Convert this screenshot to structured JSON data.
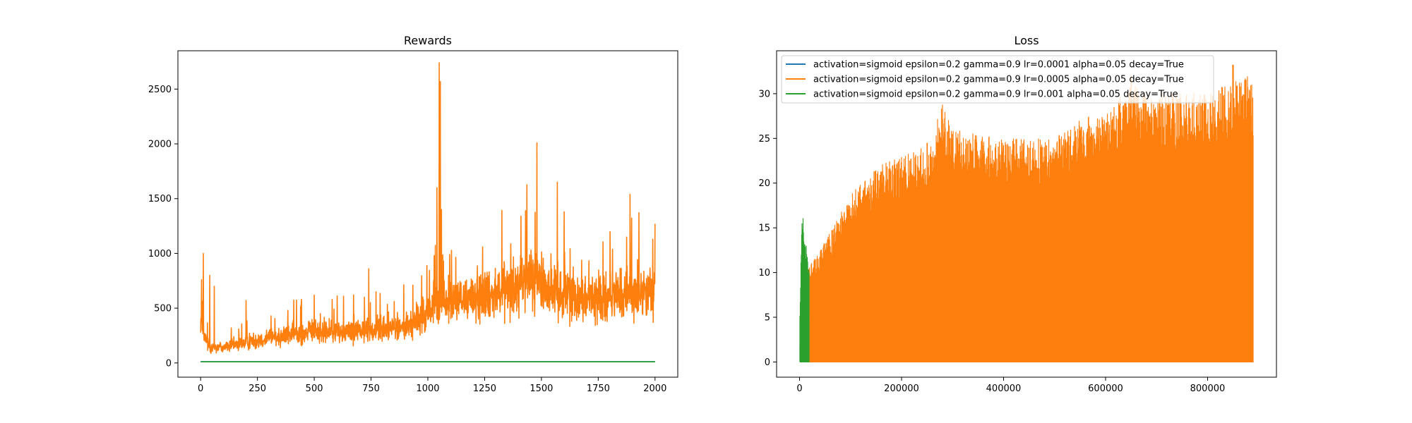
{
  "colors": {
    "blue": "#1f77b4",
    "orange": "#ff7f0e",
    "green": "#2ca02c",
    "axes": "#000000",
    "legend_border": "#cccccc"
  },
  "chart_data": [
    {
      "type": "line",
      "title": "Rewards",
      "xlabel": "",
      "ylabel": "",
      "xlim": [
        -100,
        2100
      ],
      "ylim": [
        -130,
        2850
      ],
      "grid": false,
      "xticks": [
        0,
        250,
        500,
        750,
        1000,
        1250,
        1500,
        1750,
        2000
      ],
      "yticks": [
        0,
        500,
        1000,
        1500,
        2000,
        2500
      ],
      "x_range": [
        0,
        2000
      ],
      "series": [
        {
          "color": "blue",
          "role": "flat",
          "level": 12
        },
        {
          "color": "orange",
          "role": "noisy",
          "trend_points": [
            [
              0,
              420
            ],
            [
              10,
              260
            ],
            [
              40,
              150
            ],
            [
              100,
              145
            ],
            [
              200,
              190
            ],
            [
              300,
              235
            ],
            [
              400,
              260
            ],
            [
              500,
              290
            ],
            [
              600,
              285
            ],
            [
              700,
              300
            ],
            [
              800,
              310
            ],
            [
              900,
              330
            ],
            [
              950,
              380
            ],
            [
              1000,
              470
            ],
            [
              1050,
              560
            ],
            [
              1100,
              560
            ],
            [
              1200,
              600
            ],
            [
              1300,
              660
            ],
            [
              1400,
              700
            ],
            [
              1450,
              770
            ],
            [
              1500,
              740
            ],
            [
              1550,
              660
            ],
            [
              1600,
              630
            ],
            [
              1700,
              600
            ],
            [
              1800,
              600
            ],
            [
              1900,
              620
            ],
            [
              2000,
              640
            ]
          ],
          "noise_amp": 0.55,
          "spikes": [
            [
              4,
              760
            ],
            [
              12,
              1000
            ],
            [
              40,
              800
            ],
            [
              60,
              700
            ],
            [
              200,
              570
            ],
            [
              310,
              430
            ],
            [
              500,
              620
            ],
            [
              740,
              860
            ],
            [
              1040,
              1600
            ],
            [
              1050,
              2740
            ],
            [
              1055,
              2570
            ],
            [
              1060,
              1400
            ],
            [
              1410,
              1340
            ],
            [
              1430,
              1390
            ],
            [
              1480,
              2010
            ],
            [
              1570,
              1650
            ],
            [
              1600,
              1380
            ],
            [
              1890,
              1540
            ],
            [
              1990,
              1130
            ],
            [
              2000,
              1270
            ]
          ]
        },
        {
          "color": "green",
          "role": "flat",
          "level": 10
        }
      ]
    },
    {
      "type": "line",
      "title": "Loss",
      "xlabel": "",
      "ylabel": "",
      "xlim": [
        -45000,
        935000
      ],
      "ylim": [
        -1.7,
        34.8
      ],
      "grid": false,
      "xticks": [
        0,
        200000,
        400000,
        600000,
        800000
      ],
      "yticks": [
        0,
        5,
        10,
        15,
        20,
        25,
        30
      ],
      "legend": {
        "placement": "upper-left",
        "entries": [
          {
            "label": "activation=sigmoid epsilon=0.2 gamma=0.9 lr=0.0001 alpha=0.05 decay=True",
            "color": "blue"
          },
          {
            "label": "activation=sigmoid epsilon=0.2 gamma=0.9 lr=0.0005 alpha=0.05 decay=True",
            "color": "orange"
          },
          {
            "label": "activation=sigmoid epsilon=0.2 gamma=0.9 lr=0.001 alpha=0.05 decay=True",
            "color": "green"
          }
        ]
      },
      "series": [
        {
          "color": "blue",
          "role": "band",
          "x_range": [
            0,
            1000
          ],
          "peak_envelope": [
            [
              0,
              2
            ],
            [
              1000,
              2
            ]
          ]
        },
        {
          "color": "orange",
          "role": "band",
          "x_range": [
            15000,
            890000
          ],
          "peak_envelope": [
            [
              15000,
              10
            ],
            [
              40000,
              12
            ],
            [
              60000,
              14
            ],
            [
              100000,
              18
            ],
            [
              150000,
              21
            ],
            [
              200000,
              22
            ],
            [
              260000,
              24
            ],
            [
              280000,
              28
            ],
            [
              300000,
              25
            ],
            [
              400000,
              24
            ],
            [
              500000,
              24
            ],
            [
              550000,
              26
            ],
            [
              600000,
              27
            ],
            [
              650000,
              30
            ],
            [
              700000,
              29
            ],
            [
              800000,
              29
            ],
            [
              880000,
              31
            ],
            [
              890000,
              30
            ]
          ],
          "spikes": [
            [
              650000,
              32
            ],
            [
              850000,
              33.2
            ]
          ]
        },
        {
          "color": "green",
          "role": "band",
          "x_range": [
            0,
            18000
          ],
          "peak_envelope": [
            [
              0,
              3.5
            ],
            [
              3000,
              12
            ],
            [
              6000,
              16.8
            ],
            [
              10000,
              14
            ],
            [
              15000,
              12
            ],
            [
              18000,
              10
            ]
          ]
        }
      ]
    }
  ]
}
